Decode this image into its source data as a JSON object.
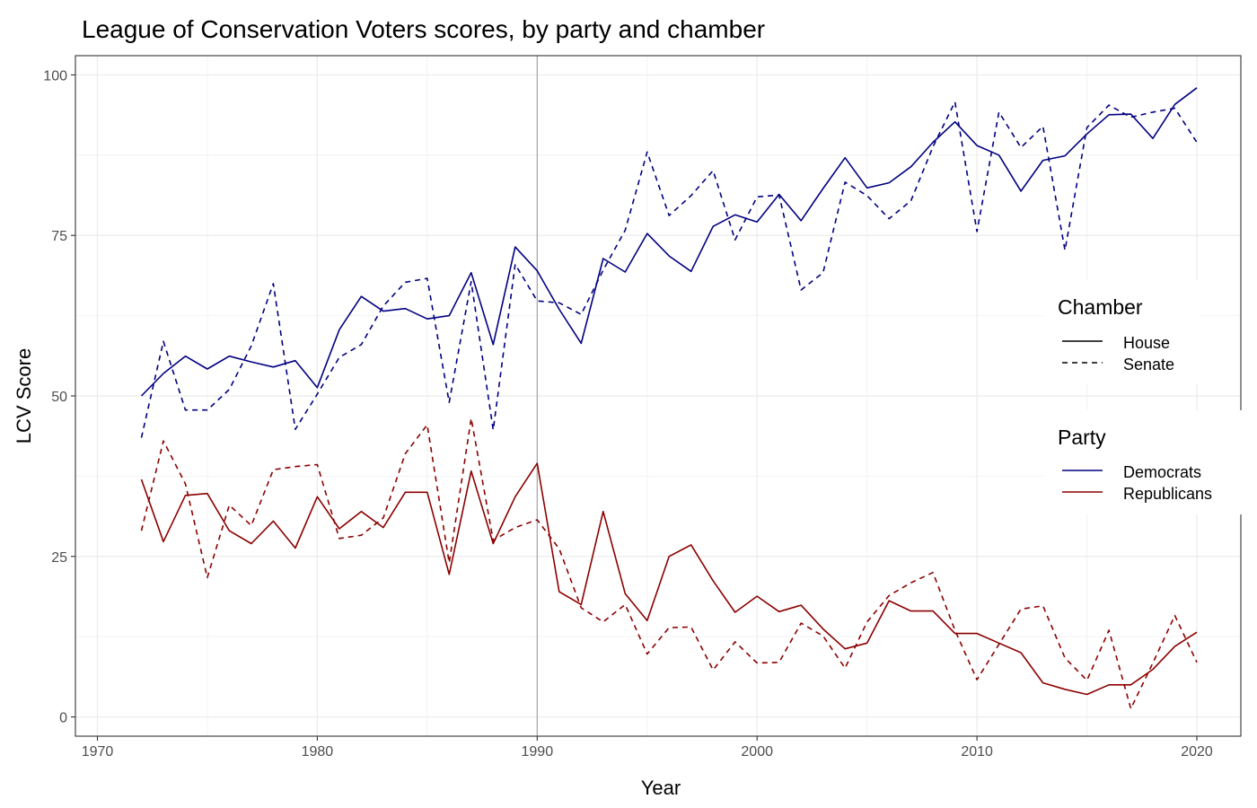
{
  "chart_data": {
    "type": "line",
    "title": "League of Conservation Voters scores, by party and chamber",
    "xlabel": "Year",
    "ylabel": "LCV Score",
    "xlim": [
      1969,
      2022
    ],
    "ylim": [
      -3,
      103
    ],
    "xticks": [
      1970,
      1980,
      1990,
      2000,
      2010,
      2020
    ],
    "yticks": [
      0,
      25,
      50,
      75,
      100
    ],
    "grid": true,
    "vline": 1990,
    "colors": {
      "Democrats": "#000080",
      "Republicans": "#8b0000"
    },
    "legend": {
      "position": "right",
      "chamber": {
        "title": "Chamber",
        "entries": [
          "House",
          "Senate"
        ]
      },
      "party": {
        "title": "Party",
        "entries": [
          "Democrats",
          "Republicans"
        ]
      }
    },
    "series": [
      {
        "party": "Democrats",
        "chamber": "House",
        "x": [
          1972,
          1973,
          1974,
          1975,
          1976,
          1977,
          1978,
          1979,
          1980,
          1981,
          1982,
          1983,
          1984,
          1985,
          1986,
          1987,
          1988,
          1989,
          1990,
          1991,
          1992,
          1993,
          1994,
          1995,
          1996,
          1997,
          1998,
          1999,
          2000,
          2001,
          2002,
          2003,
          2004,
          2005,
          2006,
          2007,
          2008,
          2009,
          2010,
          2011,
          2012,
          2013,
          2014,
          2015,
          2016,
          2017,
          2018,
          2019,
          2020
        ],
        "y": [
          50,
          53.5,
          56.2,
          54.2,
          56.2,
          55.3,
          54.5,
          55.5,
          51.3,
          60.3,
          65.5,
          63.2,
          63.6,
          62,
          62.5,
          69.2,
          58,
          73.2,
          69.5,
          63.5,
          58.2,
          71.4,
          69.3,
          75.3,
          71.8,
          69.4,
          76.4,
          78.2,
          77.1,
          81.4,
          77.3,
          82.3,
          87.1,
          82.4,
          83.2,
          85.7,
          89.5,
          92.7,
          89,
          87.5,
          81.9,
          86.7,
          87.4,
          90.8,
          93.8,
          93.9,
          90.1,
          95.4,
          98
        ]
      },
      {
        "party": "Democrats",
        "chamber": "Senate",
        "x": [
          1972,
          1973,
          1974,
          1975,
          1976,
          1977,
          1978,
          1979,
          1980,
          1981,
          1982,
          1983,
          1984,
          1985,
          1986,
          1987,
          1988,
          1989,
          1990,
          1991,
          1992,
          1993,
          1994,
          1995,
          1996,
          1997,
          1998,
          1999,
          2000,
          2001,
          2002,
          2003,
          2004,
          2005,
          2006,
          2007,
          2008,
          2009,
          2010,
          2011,
          2012,
          2013,
          2014,
          2015,
          2016,
          2017,
          2018,
          2019,
          2020
        ],
        "y": [
          43.5,
          58.5,
          47.8,
          47.8,
          51,
          57.8,
          67.5,
          44.8,
          50.3,
          56,
          58,
          64,
          67.7,
          68.3,
          49,
          67.8,
          44.7,
          70.5,
          64.8,
          64.5,
          62.7,
          69.6,
          75.8,
          88,
          78.1,
          81.2,
          85.1,
          74.3,
          81,
          81.3,
          66.5,
          69.2,
          83.3,
          81.2,
          77.6,
          80.4,
          88.8,
          95.8,
          75.6,
          94.2,
          88.7,
          92,
          72.7,
          91.8,
          95.3,
          93.4,
          94.2,
          94.8,
          89.5
        ]
      },
      {
        "party": "Republicans",
        "chamber": "House",
        "x": [
          1972,
          1973,
          1974,
          1975,
          1976,
          1977,
          1978,
          1979,
          1980,
          1981,
          1982,
          1983,
          1984,
          1985,
          1986,
          1987,
          1988,
          1989,
          1990,
          1991,
          1992,
          1993,
          1994,
          1995,
          1996,
          1997,
          1998,
          1999,
          2000,
          2001,
          2002,
          2003,
          2004,
          2005,
          2006,
          2007,
          2008,
          2009,
          2010,
          2011,
          2012,
          2013,
          2014,
          2015,
          2016,
          2017,
          2018,
          2019,
          2020
        ],
        "y": [
          37,
          27.3,
          34.5,
          34.8,
          29,
          27,
          30.5,
          26.3,
          34.3,
          29.3,
          32,
          29.5,
          35,
          35,
          22.2,
          38.3,
          27,
          34.3,
          39.5,
          19.5,
          17.5,
          32,
          19.2,
          15,
          25,
          26.8,
          21.2,
          16.3,
          18.8,
          16.4,
          17.4,
          13.7,
          10.6,
          11.5,
          18.1,
          16.5,
          16.5,
          13,
          13,
          11.5,
          10,
          5.3,
          4.3,
          3.5,
          5,
          5,
          7.4,
          11,
          13.2
        ]
      },
      {
        "party": "Republicans",
        "chamber": "Senate",
        "x": [
          1972,
          1973,
          1974,
          1975,
          1976,
          1977,
          1978,
          1979,
          1980,
          1981,
          1982,
          1983,
          1984,
          1985,
          1986,
          1987,
          1988,
          1989,
          1990,
          1991,
          1992,
          1993,
          1994,
          1995,
          1996,
          1997,
          1998,
          1999,
          2000,
          2001,
          2002,
          2003,
          2004,
          2005,
          2006,
          2007,
          2008,
          2009,
          2010,
          2011,
          2012,
          2013,
          2014,
          2015,
          2016,
          2017,
          2018,
          2019,
          2020
        ],
        "y": [
          29,
          43,
          36.3,
          21.7,
          33,
          29.8,
          38.5,
          39,
          39.3,
          27.8,
          28.3,
          31,
          41,
          45.5,
          24,
          46.5,
          27.5,
          29.5,
          30.7,
          26.2,
          17,
          14.8,
          17.5,
          9.8,
          13.9,
          14,
          7.3,
          11.7,
          8.4,
          8.5,
          14.6,
          12.6,
          7.6,
          14.8,
          18.9,
          20.9,
          22.5,
          13.5,
          5.8,
          11.3,
          16.8,
          17.3,
          9.2,
          5.7,
          13.5,
          1.3,
          8.4,
          15.8,
          8.5
        ]
      }
    ]
  }
}
